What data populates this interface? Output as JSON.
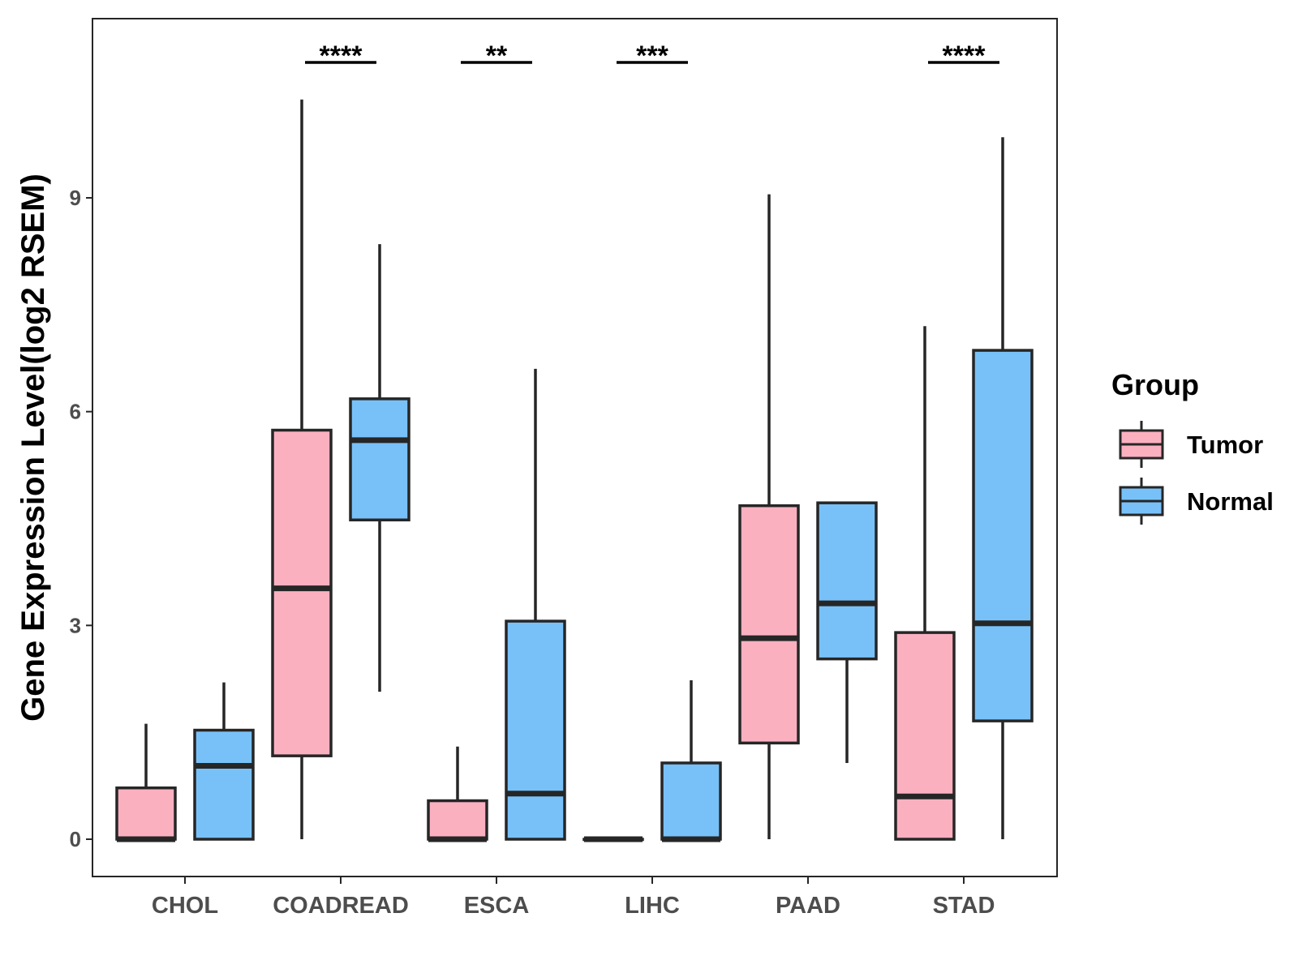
{
  "chart_data": {
    "type": "boxplot",
    "title": "",
    "xlabel": "",
    "ylabel": "Gene Expression Level(log2 RSEM)",
    "ylim": [
      -0.55,
      11.5
    ],
    "yticks": [
      0,
      3,
      6,
      9
    ],
    "categories": [
      "CHOL",
      "COADREAD",
      "ESCA",
      "LIHC",
      "PAAD",
      "STAD"
    ],
    "grid": false,
    "legend": {
      "title": "Group",
      "position": "right",
      "entries": [
        "Tumor",
        "Normal"
      ]
    },
    "colors": {
      "Tumor": "#fbb0c0",
      "Normal": "#78c1f8",
      "stroke": "#262626"
    },
    "series": [
      {
        "name": "Tumor",
        "boxes": [
          {
            "category": "CHOL",
            "whisker_low": 0,
            "q1": 0,
            "median": 0,
            "q3": 0.72,
            "whisker_high": 1.62
          },
          {
            "category": "COADREAD",
            "whisker_low": 0,
            "q1": 1.17,
            "median": 3.52,
            "q3": 5.74,
            "whisker_high": 10.38
          },
          {
            "category": "ESCA",
            "whisker_low": 0,
            "q1": 0,
            "median": 0,
            "q3": 0.54,
            "whisker_high": 1.3
          },
          {
            "category": "LIHC",
            "whisker_low": 0,
            "q1": 0,
            "median": 0,
            "q3": 0,
            "whisker_high": 0
          },
          {
            "category": "PAAD",
            "whisker_low": 0,
            "q1": 1.35,
            "median": 2.82,
            "q3": 4.68,
            "whisker_high": 9.05
          },
          {
            "category": "STAD",
            "whisker_low": 0,
            "q1": 0,
            "median": 0.6,
            "q3": 2.9,
            "whisker_high": 7.2
          }
        ]
      },
      {
        "name": "Normal",
        "boxes": [
          {
            "category": "CHOL",
            "whisker_low": 0,
            "q1": 0,
            "median": 1.03,
            "q3": 1.53,
            "whisker_high": 2.2
          },
          {
            "category": "COADREAD",
            "whisker_low": 2.07,
            "q1": 4.48,
            "median": 5.6,
            "q3": 6.18,
            "whisker_high": 8.35
          },
          {
            "category": "ESCA",
            "whisker_low": 0,
            "q1": 0,
            "median": 0.64,
            "q3": 3.06,
            "whisker_high": 6.6
          },
          {
            "category": "LIHC",
            "whisker_low": 0,
            "q1": 0,
            "median": 0,
            "q3": 1.07,
            "whisker_high": 2.23
          },
          {
            "category": "PAAD",
            "whisker_low": 1.07,
            "q1": 2.53,
            "median": 3.31,
            "q3": 4.72,
            "whisker_high": 4.72
          },
          {
            "category": "STAD",
            "whisker_low": 0,
            "q1": 1.66,
            "median": 3.03,
            "q3": 6.86,
            "whisker_high": 9.85
          }
        ]
      }
    ],
    "annotations": [
      {
        "category": "COADREAD",
        "label": "****",
        "y": 10.9
      },
      {
        "category": "ESCA",
        "label": "**",
        "y": 10.9
      },
      {
        "category": "LIHC",
        "label": "***",
        "y": 10.9
      },
      {
        "category": "STAD",
        "label": "****",
        "y": 10.9
      }
    ]
  }
}
